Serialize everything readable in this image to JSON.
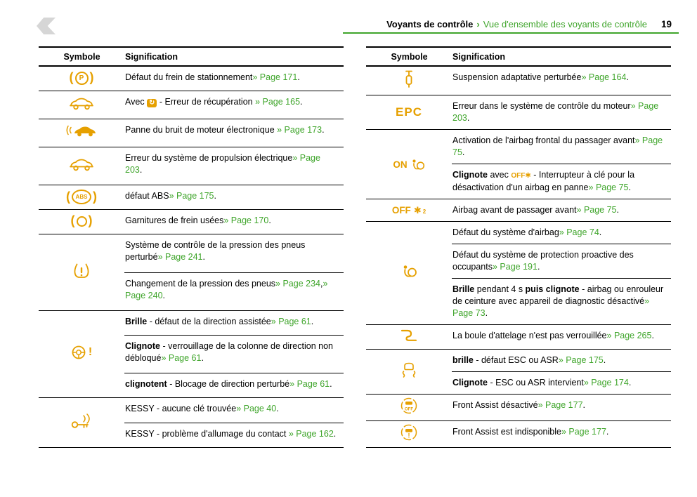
{
  "header": {
    "chapter": "Voyants de contrôle",
    "separator": "›",
    "section": "Vue d'ensemble des voyants de contrôle",
    "page_number": "19"
  },
  "colors": {
    "green": "#3fa52b",
    "amber": "#e6a000"
  },
  "tables": [
    {
      "columns": {
        "symbol": "Symbole",
        "meaning": "Signification"
      },
      "rows": [
        {
          "icon": "parking-brake-defect-icon",
          "entries": [
            {
              "segments": [
                {
                  "text": "Défaut du frein de stationnement"
                },
                {
                  "text": "» Page 171",
                  "link": true
                },
                {
                  "text": "."
                }
              ]
            }
          ]
        },
        {
          "icon": "hybrid-car-icon",
          "entries": [
            {
              "segments": [
                {
                  "text": "Avec "
                },
                {
                  "text": "↻",
                  "icon": "recuperation-icon"
                },
                {
                  "text": " - Erreur de récupération "
                },
                {
                  "text": "» Page 165",
                  "link": true
                },
                {
                  "text": "."
                }
              ]
            }
          ]
        },
        {
          "icon": "e-sound-car-icon",
          "entries": [
            {
              "segments": [
                {
                  "text": "Panne du bruit de moteur électronique "
                },
                {
                  "text": "» Page 173",
                  "link": true
                },
                {
                  "text": "."
                }
              ]
            }
          ]
        },
        {
          "icon": "electric-drive-car-icon",
          "entries": [
            {
              "segments": [
                {
                  "text": "Erreur du système de propulsion électrique"
                },
                {
                  "text": "» Page 203",
                  "link": true
                },
                {
                  "text": "."
                }
              ]
            }
          ]
        },
        {
          "icon": "abs-icon",
          "entries": [
            {
              "segments": [
                {
                  "text": "défaut ABS"
                },
                {
                  "text": "» Page 175",
                  "link": true
                },
                {
                  "text": "."
                }
              ]
            }
          ]
        },
        {
          "icon": "brake-pad-wear-icon",
          "entries": [
            {
              "segments": [
                {
                  "text": "Garnitures de frein usées"
                },
                {
                  "text": "» Page 170",
                  "link": true
                },
                {
                  "text": "."
                }
              ]
            }
          ]
        },
        {
          "icon": "tire-pressure-icon",
          "entries": [
            {
              "segments": [
                {
                  "text": "Système de contrôle de la pression des pneus perturbé"
                },
                {
                  "text": "» Page 241",
                  "link": true
                },
                {
                  "text": "."
                }
              ]
            },
            {
              "segments": [
                {
                  "text": "Changement de la pression des pneus"
                },
                {
                  "text": "» Page 234",
                  "link": true
                },
                {
                  "text": ","
                },
                {
                  "text": "» Page 240",
                  "link": true
                },
                {
                  "text": "."
                }
              ]
            }
          ]
        },
        {
          "icon": "steering-wheel-warning-icon",
          "entries": [
            {
              "segments": [
                {
                  "text": "Brille",
                  "bold": true
                },
                {
                  "text": " - défaut de la direction assistée"
                },
                {
                  "text": "» Page 61",
                  "link": true
                },
                {
                  "text": "."
                }
              ]
            },
            {
              "segments": [
                {
                  "text": "Clignote",
                  "bold": true
                },
                {
                  "text": " - verrouillage de la colonne de direction non débloqué"
                },
                {
                  "text": "» Page 61",
                  "link": true
                },
                {
                  "text": "."
                }
              ]
            },
            {
              "segments": [
                {
                  "text": "clignotent",
                  "bold": true
                },
                {
                  "text": " - Blocage de direction perturbé"
                },
                {
                  "text": "» Page 61",
                  "link": true
                },
                {
                  "text": "."
                }
              ]
            }
          ]
        },
        {
          "icon": "kessy-key-icon",
          "entries": [
            {
              "segments": [
                {
                  "text": "KESSY - aucune clé trouvée"
                },
                {
                  "text": "» Page 40",
                  "link": true
                },
                {
                  "text": "."
                }
              ]
            },
            {
              "segments": [
                {
                  "text": "KESSY - problème d'allumage du contact "
                },
                {
                  "text": "» Page 162",
                  "link": true
                },
                {
                  "text": "."
                }
              ]
            }
          ]
        }
      ]
    },
    {
      "columns": {
        "symbol": "Symbole",
        "meaning": "Signification"
      },
      "rows": [
        {
          "icon": "adaptive-suspension-icon",
          "entries": [
            {
              "segments": [
                {
                  "text": "Suspension adaptative perturbée"
                },
                {
                  "text": "» Page 164",
                  "link": true
                },
                {
                  "text": "."
                }
              ]
            }
          ]
        },
        {
          "icon": "epc-icon",
          "entries": [
            {
              "segments": [
                {
                  "text": "Erreur dans le système de contrôle du moteur"
                },
                {
                  "text": "» Page 203",
                  "link": true
                },
                {
                  "text": "."
                }
              ]
            }
          ]
        },
        {
          "icon": "airbag-on-icon",
          "entries": [
            {
              "segments": [
                {
                  "text": "Activation de l'airbag frontal du passager avant"
                },
                {
                  "text": "» Page 75",
                  "link": true
                },
                {
                  "text": "."
                }
              ]
            },
            {
              "segments": [
                {
                  "text": "Clignote",
                  "bold": true
                },
                {
                  "text": " avec "
                },
                {
                  "text": "OFF✱",
                  "icon": "airbag-off-switch-icon"
                },
                {
                  "text": " - Interrupteur à clé pour la désactivation d'un airbag en panne"
                },
                {
                  "text": "» Page 75",
                  "link": true
                },
                {
                  "text": "."
                }
              ]
            }
          ]
        },
        {
          "icon": "airbag-off-passenger-icon",
          "entries": [
            {
              "segments": [
                {
                  "text": "Airbag avant de passager avant"
                },
                {
                  "text": "» Page 75",
                  "link": true
                },
                {
                  "text": "."
                }
              ]
            }
          ]
        },
        {
          "icon": "airbag-warning-icon",
          "entries": [
            {
              "segments": [
                {
                  "text": "Défaut du système d'airbag"
                },
                {
                  "text": "» Page 74",
                  "link": true
                },
                {
                  "text": "."
                }
              ]
            },
            {
              "segments": [
                {
                  "text": "Défaut du système de protection proactive des occupants"
                },
                {
                  "text": "» Page 191",
                  "link": true
                },
                {
                  "text": "."
                }
              ]
            },
            {
              "segments": [
                {
                  "text": "Brille",
                  "bold": true
                },
                {
                  "text": " pendant 4 s "
                },
                {
                  "text": "puis clignote",
                  "bold": true
                },
                {
                  "text": " - airbag ou enrouleur de ceinture avec appareil de diagnostic désactivé"
                },
                {
                  "text": "» Page 73",
                  "link": true
                },
                {
                  "text": "."
                }
              ]
            }
          ]
        },
        {
          "icon": "towbar-icon",
          "entries": [
            {
              "segments": [
                {
                  "text": "La boule d'attelage n'est pas verrouillée"
                },
                {
                  "text": "» Page 265",
                  "link": true
                },
                {
                  "text": "."
                }
              ]
            }
          ]
        },
        {
          "icon": "esc-icon",
          "entries": [
            {
              "segments": [
                {
                  "text": "brille",
                  "bold": true
                },
                {
                  "text": " - défaut ESC ou ASR"
                },
                {
                  "text": "» Page 175",
                  "link": true
                },
                {
                  "text": "."
                }
              ]
            },
            {
              "segments": [
                {
                  "text": "Clignote",
                  "bold": true
                },
                {
                  "text": " - ESC ou ASR intervient"
                },
                {
                  "text": "» Page 174",
                  "link": true
                },
                {
                  "text": "."
                }
              ]
            }
          ]
        },
        {
          "icon": "front-assist-off-icon",
          "entries": [
            {
              "segments": [
                {
                  "text": "Front Assist désactivé"
                },
                {
                  "text": "» Page 177",
                  "link": true
                },
                {
                  "text": "."
                }
              ]
            }
          ]
        },
        {
          "icon": "front-assist-unavailable-icon",
          "entries": [
            {
              "segments": [
                {
                  "text": "Front Assist est indisponible"
                },
                {
                  "text": "» Page 177",
                  "link": true
                },
                {
                  "text": "."
                }
              ]
            }
          ]
        }
      ]
    }
  ]
}
